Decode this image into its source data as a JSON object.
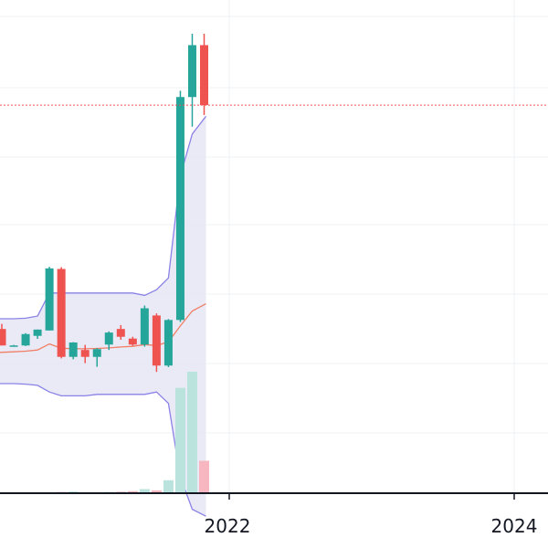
{
  "chart_data": {
    "type": "candlestick",
    "title": "",
    "xlabel": "",
    "ylabel": "",
    "x_ticks": [
      "2022",
      "2024"
    ],
    "grid": true,
    "colors": {
      "up": "#26a69a",
      "down": "#ef5350",
      "volume_up": "#b9e3dc",
      "volume_down": "#f7b6c0",
      "band_fill": "#e3e3f4",
      "band_line": "#8a82e6",
      "basis_line": "#f07f66",
      "last_price_line": "#ef5350",
      "grid": "#eef1f6"
    },
    "series": [
      {
        "name": "",
        "kind": "ohlc",
        "points": [
          {
            "o": 19.0,
            "h": 20.7,
            "l": 13.5,
            "c": 13.5
          },
          {
            "o": 13.5,
            "h": 13.7,
            "l": 13.3,
            "c": 13.5
          },
          {
            "o": 13.5,
            "h": 17.6,
            "l": 13.3,
            "c": 17.3
          },
          {
            "o": 16.7,
            "h": 18.8,
            "l": 15.7,
            "c": 18.8
          },
          {
            "o": 18.5,
            "h": 39.7,
            "l": 18.5,
            "c": 39.2
          },
          {
            "o": 39.0,
            "h": 39.6,
            "l": 9.2,
            "c": 9.7
          },
          {
            "o": 9.7,
            "h": 14.6,
            "l": 8.9,
            "c": 14.5
          },
          {
            "o": 12.0,
            "h": 13.7,
            "l": 7.6,
            "c": 9.7
          },
          {
            "o": 9.7,
            "h": 12.6,
            "l": 6.4,
            "c": 12.3
          },
          {
            "o": 13.8,
            "h": 18.2,
            "l": 12.0,
            "c": 17.8
          },
          {
            "o": 19.0,
            "h": 20.3,
            "l": 15.4,
            "c": 16.4
          },
          {
            "o": 15.8,
            "h": 16.4,
            "l": 13.4,
            "c": 13.8
          },
          {
            "o": 13.8,
            "h": 26.8,
            "l": 13.1,
            "c": 25.9
          },
          {
            "o": 23.5,
            "h": 24.2,
            "l": 4.7,
            "c": 6.8
          },
          {
            "o": 6.8,
            "h": 22.3,
            "l": 6.3,
            "c": 22.0
          },
          {
            "o": 22.0,
            "h": 98.4,
            "l": 21.3,
            "c": 96.3
          },
          {
            "o": 96.3,
            "h": 117.4,
            "l": 86.4,
            "c": 113.6
          },
          {
            "o": 113.6,
            "h": 117.4,
            "l": 90.3,
            "c": 93.6
          }
        ]
      }
    ],
    "bollinger": {
      "upper": [
        22.4,
        22.4,
        22.6,
        23.3,
        31.0,
        31.0,
        31.0,
        31.0,
        31.0,
        31.0,
        31.0,
        31.0,
        30.2,
        32.1,
        36.0,
        70.0,
        84.0,
        89.9
      ],
      "basis": [
        11.2,
        11.4,
        11.6,
        12.0,
        14.0,
        12.6,
        12.4,
        12.4,
        12.5,
        12.7,
        13.0,
        13.2,
        13.8,
        13.5,
        14.7,
        20.0,
        25.0,
        27.4
      ],
      "lower": [
        0.8,
        0.8,
        0.6,
        0.2,
        -2.0,
        -3.3,
        -3.3,
        -3.3,
        -2.8,
        -2.8,
        -2.8,
        -2.8,
        -2.8,
        -2.0,
        -5.8,
        -30.3,
        -41.1,
        -43.4
      ]
    },
    "volume": [
      0.5,
      0.3,
      0.4,
      0.4,
      0.8,
      1.5,
      2.0,
      1.0,
      0.5,
      1.5,
      1.8,
      2.5,
      5.0,
      3.5,
      16.0,
      130.0,
      150.0,
      40.0
    ],
    "last_price": 93.6
  }
}
